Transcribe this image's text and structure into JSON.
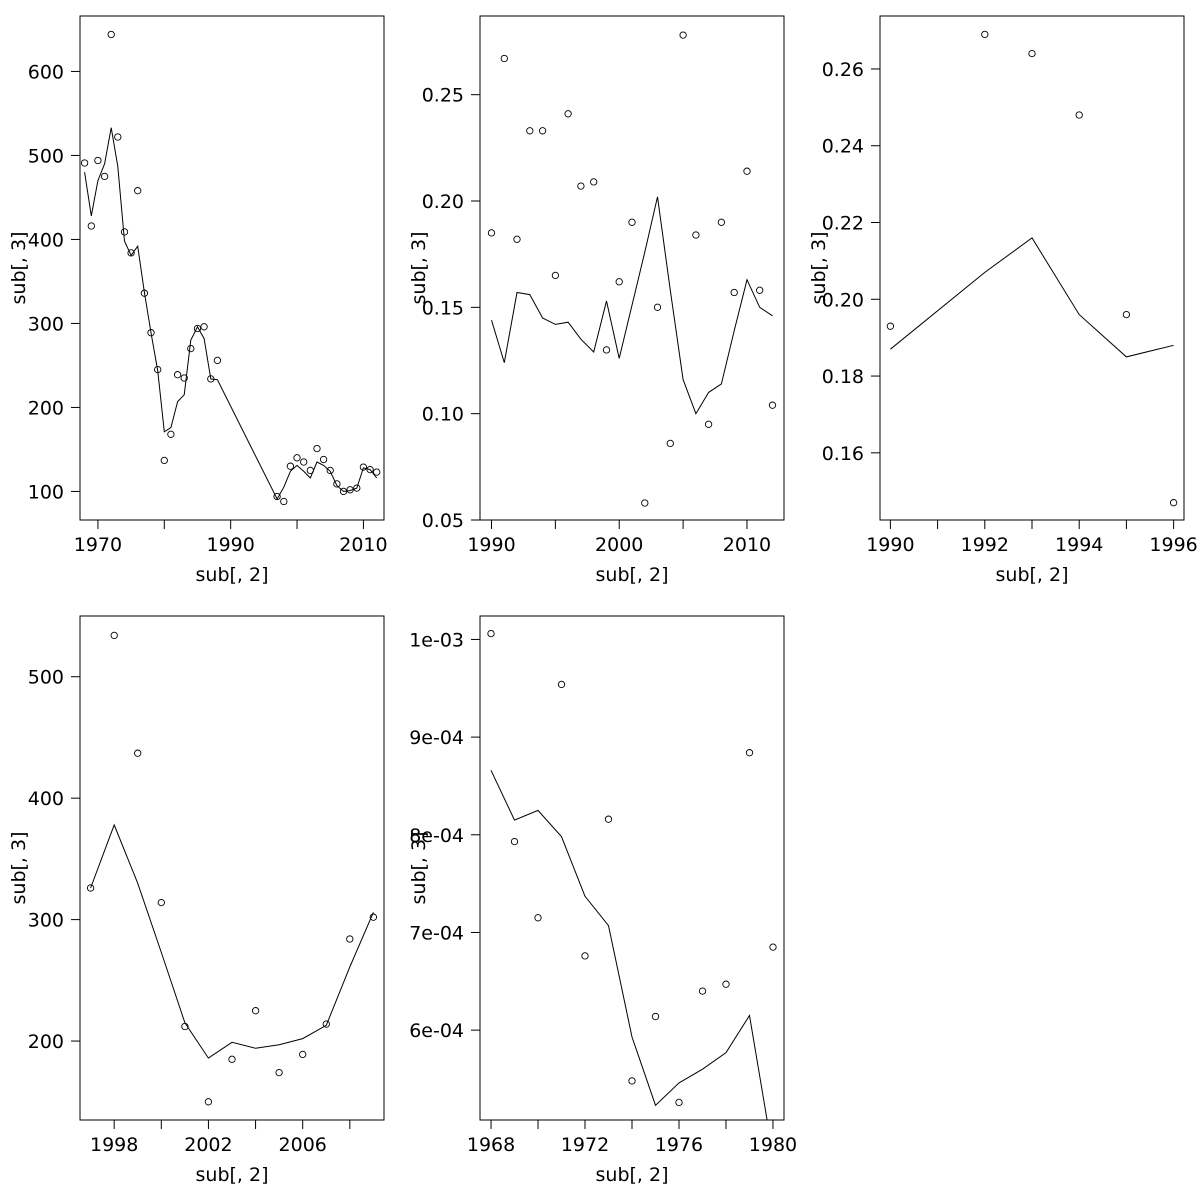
{
  "chart_data": [
    {
      "type": "scatter",
      "xlabel": "sub[, 2]",
      "ylabel": "sub[, 3]",
      "xlim": [
        1967.3,
        2013.1
      ],
      "ylim": [
        66,
        666
      ],
      "xticks": [
        1970,
        1990,
        2010
      ],
      "xtick_minor": [
        1980,
        2000
      ],
      "xtick_labels": [
        "1970",
        "1990",
        "2010"
      ],
      "yticks": [
        100,
        200,
        300,
        400,
        500,
        600
      ],
      "ytick_labels": [
        "100",
        "200",
        "300",
        "400",
        "500",
        "600"
      ],
      "series": [
        {
          "kind": "points",
          "x": [
            1968,
            1969,
            1970,
            1971,
            1972,
            1973,
            1974,
            1975,
            1976,
            1977,
            1978,
            1979,
            1980,
            1981,
            1982,
            1983,
            1984,
            1985,
            1986,
            1987,
            1988,
            1997,
            1998,
            1999,
            2000,
            2001,
            2002,
            2003,
            2004,
            2005,
            2006,
            2007,
            2008,
            2009,
            2010,
            2011,
            2012
          ],
          "y": [
            491,
            416,
            494,
            475,
            644,
            522,
            409,
            384,
            458,
            336,
            289,
            245,
            137,
            168,
            239,
            235,
            270,
            294,
            296,
            234,
            256,
            94,
            88,
            130,
            140,
            135,
            125,
            151,
            138,
            125,
            109,
            100,
            102,
            104,
            129,
            126,
            123
          ]
        },
        {
          "kind": "line",
          "x": [
            1968,
            1969,
            1970,
            1971,
            1972,
            1973,
            1974,
            1975,
            1976,
            1977,
            1978,
            1979,
            1980,
            1981,
            1982,
            1983,
            1984,
            1985,
            1986,
            1987,
            1988,
            1997,
            1998,
            1999,
            2000,
            2001,
            2002,
            2003,
            2004,
            2005,
            2006,
            2007,
            2008,
            2009,
            2010,
            2011,
            2012
          ],
          "y": [
            480,
            428,
            470,
            490,
            533,
            487,
            398,
            381,
            392,
            337,
            289,
            244,
            171,
            176,
            207,
            215,
            280,
            296,
            282,
            234,
            233,
            91,
            105,
            124,
            131,
            124,
            116,
            135,
            131,
            124,
            107,
            100,
            101,
            104,
            128,
            126,
            116
          ]
        }
      ]
    },
    {
      "type": "scatter",
      "xlabel": "sub[, 2]",
      "ylabel": "sub[, 3]",
      "xlim": [
        1989.1,
        2012.9
      ],
      "ylim": [
        0.05,
        0.287
      ],
      "xticks": [
        1990,
        2000,
        2010
      ],
      "xtick_minor": [
        1995,
        2005
      ],
      "xtick_labels": [
        "1990",
        "2000",
        "2010"
      ],
      "yticks": [
        0.05,
        0.1,
        0.15,
        0.2,
        0.25
      ],
      "ytick_labels": [
        "0.05",
        "0.10",
        "0.15",
        "0.20",
        "0.25"
      ],
      "series": [
        {
          "kind": "points",
          "x": [
            1990,
            1991,
            1992,
            1993,
            1994,
            1995,
            1996,
            1997,
            1998,
            1999,
            2000,
            2001,
            2002,
            2003,
            2004,
            2005,
            2006,
            2007,
            2008,
            2009,
            2010,
            2011,
            2012
          ],
          "y": [
            0.185,
            0.267,
            0.182,
            0.233,
            0.233,
            0.165,
            0.241,
            0.207,
            0.209,
            0.13,
            0.162,
            0.19,
            0.058,
            0.15,
            0.086,
            0.278,
            0.184,
            0.095,
            0.19,
            0.157,
            0.214,
            0.158,
            0.104
          ]
        },
        {
          "kind": "line",
          "x": [
            1990,
            1991,
            1992,
            1993,
            1994,
            1995,
            1996,
            1997,
            1998,
            1999,
            2000,
            2001,
            2002,
            2003,
            2004,
            2005,
            2006,
            2007,
            2008,
            2009,
            2010,
            2011,
            2012
          ],
          "y": [
            0.144,
            0.124,
            0.157,
            0.156,
            0.145,
            0.142,
            0.143,
            0.135,
            0.129,
            0.153,
            0.126,
            0.151,
            0.176,
            0.202,
            0.158,
            0.116,
            0.1,
            0.11,
            0.114,
            0.139,
            0.163,
            0.15,
            0.146
          ]
        }
      ]
    },
    {
      "type": "scatter",
      "xlabel": "sub[, 2]",
      "ylabel": "sub[, 3]",
      "xlim": [
        1989.78,
        1996.22
      ],
      "ylim": [
        0.1425,
        0.2738
      ],
      "xticks": [
        1990,
        1992,
        1994,
        1996
      ],
      "xtick_minor": [
        1991,
        1993,
        1995
      ],
      "xtick_labels": [
        "1990",
        "1992",
        "1994",
        "1996"
      ],
      "yticks": [
        0.16,
        0.18,
        0.2,
        0.22,
        0.24,
        0.26
      ],
      "ytick_labels": [
        "0.16",
        "0.18",
        "0.20",
        "0.22",
        "0.24",
        "0.26"
      ],
      "series": [
        {
          "kind": "points",
          "x": [
            1990,
            1992,
            1993,
            1994,
            1995,
            1996
          ],
          "y": [
            0.193,
            0.269,
            0.264,
            0.248,
            0.196,
            0.147
          ]
        },
        {
          "kind": "line",
          "x": [
            1990,
            1992,
            1993,
            1994,
            1995,
            1996
          ],
          "y": [
            0.187,
            0.207,
            0.216,
            0.196,
            0.185,
            0.188
          ]
        }
      ]
    },
    {
      "type": "scatter",
      "xlabel": "sub[, 2]",
      "ylabel": "sub[, 3]",
      "xlim": [
        1996.55,
        2009.45
      ],
      "ylim": [
        135,
        550
      ],
      "xticks": [
        1998,
        2002,
        2006
      ],
      "xtick_minor": [
        2000,
        2004,
        2008
      ],
      "xtick_labels": [
        "1998",
        "2002",
        "2006"
      ],
      "yticks": [
        200,
        300,
        400,
        500
      ],
      "ytick_labels": [
        "200",
        "300",
        "400",
        "500"
      ],
      "series": [
        {
          "kind": "points",
          "x": [
            1997,
            1998,
            1999,
            2000,
            2001,
            2002,
            2003,
            2004,
            2005,
            2006,
            2007,
            2008,
            2009
          ],
          "y": [
            326,
            534,
            437,
            314,
            212,
            150,
            185,
            225,
            174,
            189,
            214,
            284,
            302
          ]
        },
        {
          "kind": "line",
          "x": [
            1997,
            1998,
            1999,
            2000,
            2001,
            2002,
            2003,
            2004,
            2005,
            2006,
            2007,
            2008,
            2009
          ],
          "y": [
            326,
            378,
            330,
            273,
            215,
            186,
            199,
            194,
            197,
            202,
            213,
            261,
            306
          ]
        }
      ]
    },
    {
      "type": "scatter",
      "xlabel": "sub[, 2]",
      "ylabel": "sub[, 3]",
      "xlim": [
        1967.53,
        1980.47
      ],
      "ylim": [
        0.000508,
        0.001024
      ],
      "xticks": [
        1968,
        1972,
        1976,
        1980
      ],
      "xtick_minor": [
        1970,
        1974,
        1978
      ],
      "xtick_labels": [
        "1968",
        "1972",
        "1976",
        "1980"
      ],
      "yticks": [
        0.0006,
        0.0007,
        0.0008,
        0.0009,
        0.001
      ],
      "ytick_labels": [
        "6e-04",
        "7e-04",
        "8e-04",
        "9e-04",
        "1e-03"
      ],
      "series": [
        {
          "kind": "points",
          "x": [
            1968,
            1969,
            1970,
            1971,
            1972,
            1973,
            1974,
            1975,
            1976,
            1977,
            1978,
            1979,
            1980
          ],
          "y": [
            0.001006,
            0.000793,
            0.000715,
            0.000954,
            0.000676,
            0.000816,
            0.000548,
            0.000614,
            0.000526,
            0.00064,
            0.000647,
            0.000884,
            0.000685
          ]
        },
        {
          "kind": "line",
          "x": [
            1968,
            1969,
            1970,
            1971,
            1972,
            1973,
            1974,
            1975,
            1976,
            1977,
            1978,
            1979,
            1979.75
          ],
          "y": [
            0.000866,
            0.000815,
            0.000825,
            0.000798,
            0.000737,
            0.000707,
            0.000593,
            0.000523,
            0.000546,
            0.00056,
            0.000577,
            0.000615,
            0.000508
          ]
        }
      ]
    }
  ]
}
